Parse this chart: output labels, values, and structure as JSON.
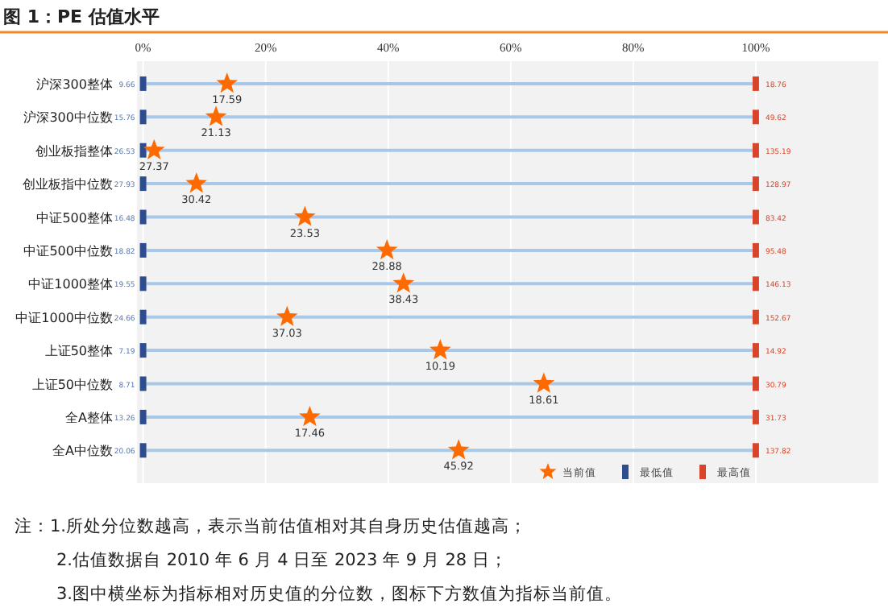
{
  "chart_data": {
    "type": "scatter",
    "orientation": "horizontal",
    "title": "图 1：PE 估值水平",
    "categories": [
      "沪深300整体",
      "沪深300中位数",
      "创业板指整体",
      "创业板指中位数",
      "中证500整体",
      "中证500中位数",
      "中证1000整体",
      "中证1000中位数",
      "上证50整体",
      "上证50中位数",
      "全A整体",
      "全A中位数"
    ],
    "series": [
      {
        "name": "当前值",
        "color": "#ff6a00",
        "marker": "star",
        "values": [
          13.7,
          11.9,
          1.8,
          8.7,
          26.4,
          39.8,
          42.5,
          23.5,
          48.5,
          65.4,
          27.2,
          51.5
        ]
      },
      {
        "name": "最低值",
        "color": "#2e4d8f",
        "marker": "square",
        "values": [
          0,
          0,
          0,
          0,
          0,
          0,
          0,
          0,
          0,
          0,
          0,
          0
        ]
      },
      {
        "name": "最高值",
        "color": "#d9452b",
        "marker": "square",
        "values": [
          100,
          100,
          100,
          100,
          100,
          100,
          100,
          100,
          100,
          100,
          100,
          100
        ]
      }
    ],
    "xlim": [
      -1,
      120
    ],
    "xticks": [
      {
        "value": 0,
        "label": "0%"
      },
      {
        "value": 20,
        "label": "20%"
      },
      {
        "value": 40,
        "label": "40%"
      },
      {
        "value": 60,
        "label": "60%"
      },
      {
        "value": 80,
        "label": "80%"
      },
      {
        "value": 100,
        "label": "100%"
      }
    ],
    "grid": true,
    "legend": "bottom",
    "annotations": [
      {
        "text": "17.59",
        "x": 13.7,
        "y": "沪深300整体"
      },
      {
        "text": "21.13",
        "x": 11.9,
        "y": "沪深300中位数"
      },
      {
        "text": "27.37",
        "x": 1.8,
        "y": "创业板指整体"
      },
      {
        "text": "30.42",
        "x": 8.7,
        "y": "创业板指中位数"
      },
      {
        "text": "23.53",
        "x": 26.4,
        "y": "中证500整体"
      },
      {
        "text": "28.88",
        "x": 39.8,
        "y": "中证500中位数"
      },
      {
        "text": "38.43",
        "x": 42.5,
        "y": "中证1000整体"
      },
      {
        "text": "37.03",
        "x": 23.5,
        "y": "中证1000中位数"
      },
      {
        "text": "10.19",
        "x": 48.5,
        "y": "上证50整体"
      },
      {
        "text": "18.61",
        "x": 65.4,
        "y": "上证50中位数"
      },
      {
        "text": "17.46",
        "x": 27.2,
        "y": "全A整体"
      },
      {
        "text": "45.92",
        "x": 51.5,
        "y": "全A中位数"
      },
      {
        "text": "9.66",
        "x": 0,
        "y": "沪深300整体"
      },
      {
        "text": "15.76",
        "x": 0,
        "y": "沪深300中位数"
      },
      {
        "text": "26.53",
        "x": 0,
        "y": "创业板指整体"
      },
      {
        "text": "27.93",
        "x": 0,
        "y": "创业板指中位数"
      },
      {
        "text": "16.48",
        "x": 0,
        "y": "中证500整体"
      },
      {
        "text": "18.82",
        "x": 0,
        "y": "中证500中位数"
      },
      {
        "text": "19.55",
        "x": 0,
        "y": "中证1000整体"
      },
      {
        "text": "24.66",
        "x": 0,
        "y": "中证1000中位数"
      },
      {
        "text": "7.19",
        "x": 0,
        "y": "上证50整体"
      },
      {
        "text": "8.71",
        "x": 0,
        "y": "上证50中位数"
      },
      {
        "text": "13.26",
        "x": 0,
        "y": "全A整体"
      },
      {
        "text": "20.06",
        "x": 0,
        "y": "全A中位数"
      },
      {
        "text": "18.76",
        "x": 100,
        "y": "沪深300整体"
      },
      {
        "text": "49.62",
        "x": 100,
        "y": "沪深300中位数"
      },
      {
        "text": "135.19",
        "x": 100,
        "y": "创业板指整体"
      },
      {
        "text": "128.97",
        "x": 100,
        "y": "创业板指中位数"
      },
      {
        "text": "83.42",
        "x": 100,
        "y": "中证500整体"
      },
      {
        "text": "95.48",
        "x": 100,
        "y": "中证500中位数"
      },
      {
        "text": "146.13",
        "x": 100,
        "y": "中证1000整体"
      },
      {
        "text": "152.67",
        "x": 100,
        "y": "中证1000中位数"
      },
      {
        "text": "14.92",
        "x": 100,
        "y": "上证50整体"
      },
      {
        "text": "30.79",
        "x": 100,
        "y": "上证50中位数"
      },
      {
        "text": "31.73",
        "x": 100,
        "y": "全A整体"
      },
      {
        "text": "137.82",
        "x": 100,
        "y": "全A中位数"
      },
      "注：1.所处分位数越高，表示当前估值相对其自身历史估值越高；",
      "2.估值数据自 2010 年 6 月 4 日至 2023 年 9 月 28 日；",
      "3.图中横坐标为指标相对历史值的分位数，图标下方数值为指标当前值。"
    ]
  }
}
